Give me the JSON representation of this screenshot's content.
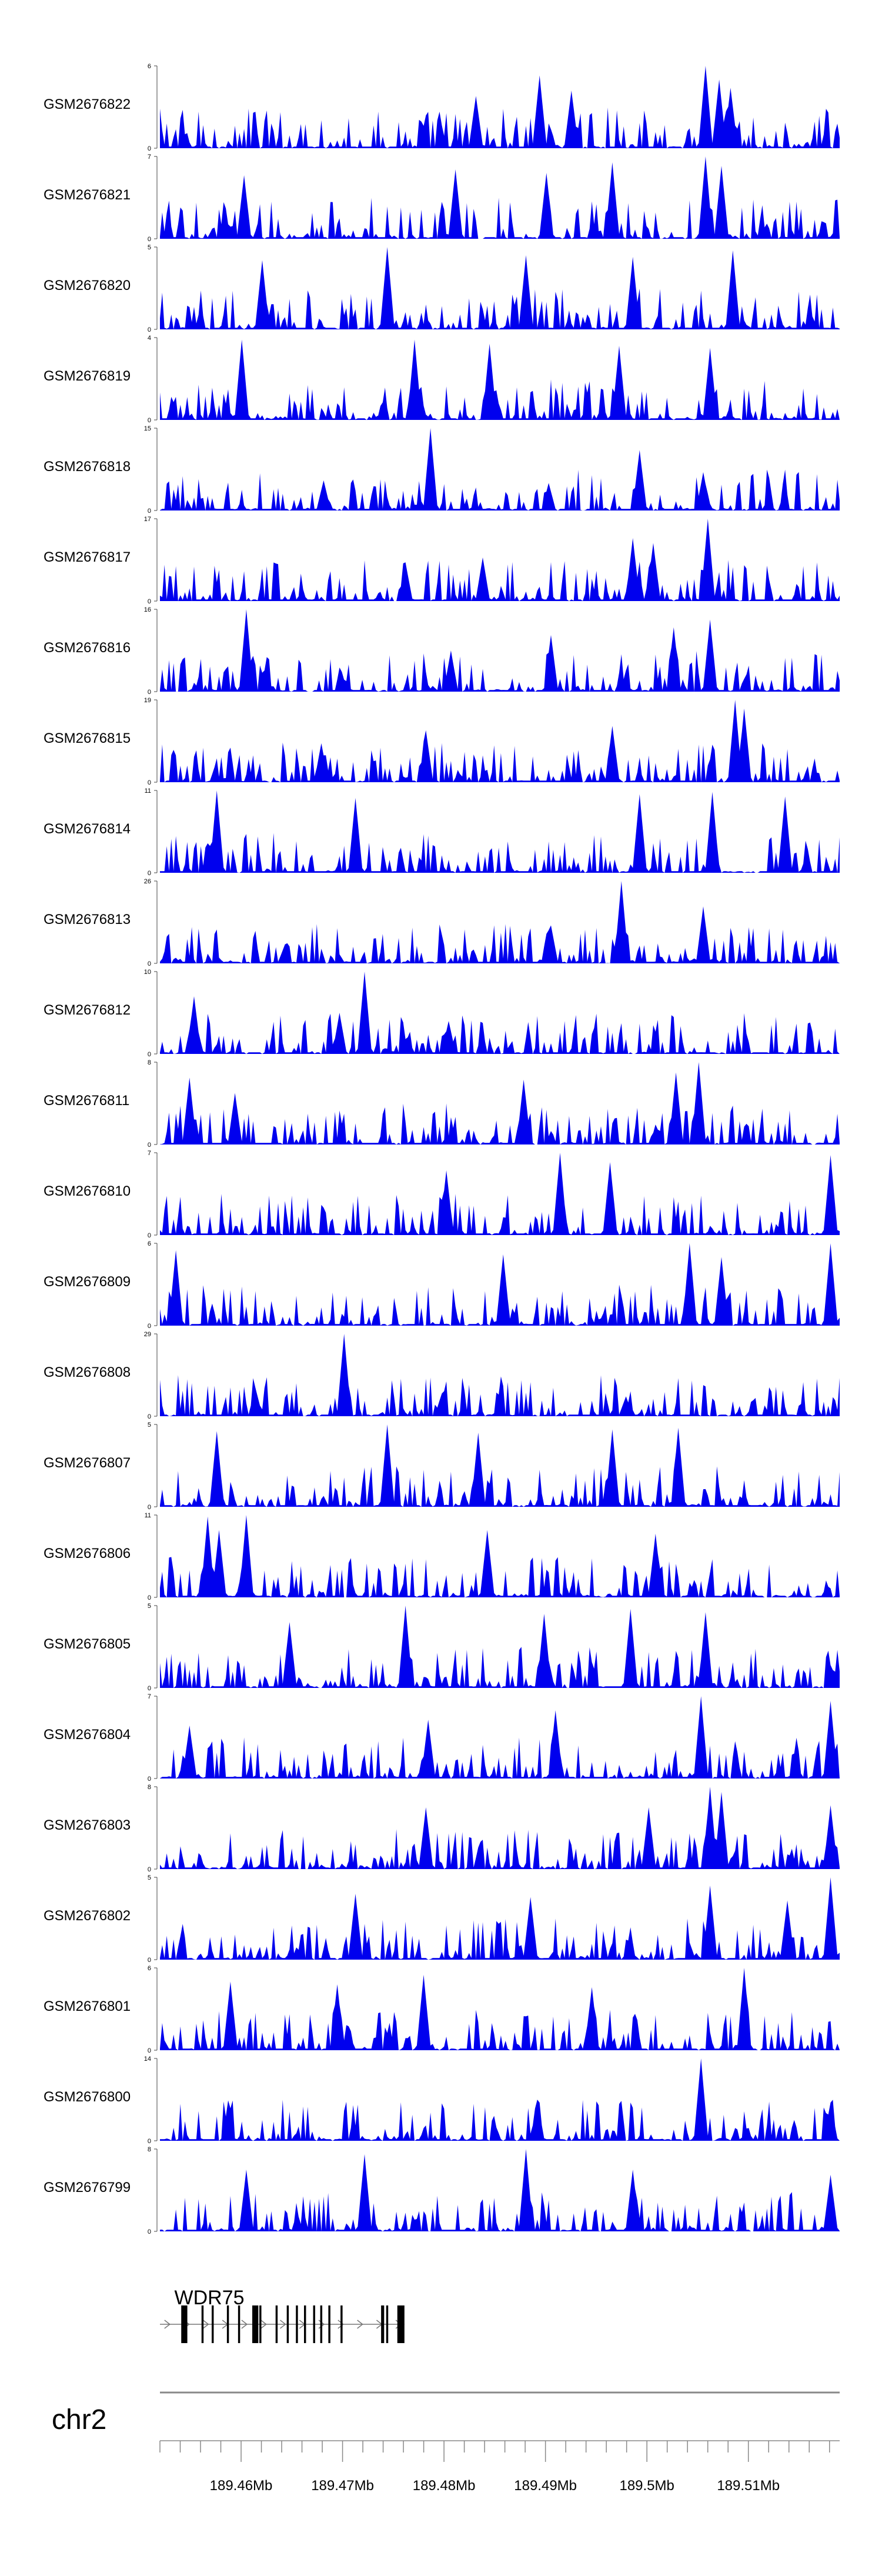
{
  "colors": {
    "signal": "#0000ee",
    "axis": "#444444",
    "gene": "#000000",
    "ruler": "#888888"
  },
  "chart_data": {
    "type": "area",
    "title": "",
    "xlabel": "",
    "ylabel": "",
    "chromosome": "chr2",
    "xlim": [
      189452000,
      189519000
    ],
    "xticks": [
      {
        "pos": 189460000,
        "label": "189.46Mb"
      },
      {
        "pos": 189470000,
        "label": "189.47Mb"
      },
      {
        "pos": 189480000,
        "label": "189.48Mb"
      },
      {
        "pos": 189490000,
        "label": "189.49Mb"
      },
      {
        "pos": 189500000,
        "label": "189.5Mb"
      },
      {
        "pos": 189510000,
        "label": "189.51Mb"
      }
    ],
    "tracks": [
      {
        "name": "GSM2676822",
        "ymax": 6,
        "ymin": 0,
        "peaks": [
          [
            189489500,
            5.3
          ],
          [
            189505800,
            6.0
          ],
          [
            189507200,
            5.0
          ],
          [
            189492600,
            4.2
          ],
          [
            189483100,
            3.8
          ],
          [
            189508300,
            4.4
          ]
        ]
      },
      {
        "name": "GSM2676821",
        "ymax": 7,
        "ymin": 0,
        "peaks": [
          [
            189505800,
            7.0
          ],
          [
            189496500,
            6.5
          ],
          [
            189507300,
            6.2
          ],
          [
            189481200,
            5.9
          ],
          [
            189490000,
            5.6
          ],
          [
            189460200,
            5.4
          ]
        ]
      },
      {
        "name": "GSM2676820",
        "ymax": 5,
        "ymin": 0,
        "peaks": [
          [
            189474300,
            5.0
          ],
          [
            189508500,
            4.8
          ],
          [
            189488000,
            4.5
          ],
          [
            189498500,
            4.4
          ],
          [
            189462100,
            4.2
          ]
        ]
      },
      {
        "name": "GSM2676819",
        "ymax": 4,
        "ymin": 0,
        "peaks": [
          [
            189460000,
            3.9
          ],
          [
            189477200,
            3.9
          ],
          [
            189484500,
            3.7
          ],
          [
            189497200,
            3.6
          ],
          [
            189506300,
            3.5
          ]
        ]
      },
      {
        "name": "GSM2676818",
        "ymax": 15,
        "ymin": 0,
        "peaks": [
          [
            189478600,
            15.0
          ],
          [
            189499300,
            11.0
          ],
          [
            189505500,
            7.0
          ],
          [
            189468200,
            5.5
          ],
          [
            189490300,
            5.0
          ]
        ]
      },
      {
        "name": "GSM2676817",
        "ymax": 17,
        "ymin": 0,
        "peaks": [
          [
            189506000,
            17.0
          ],
          [
            189498500,
            13.0
          ],
          [
            189500700,
            12.0
          ],
          [
            189483800,
            9.0
          ],
          [
            189476100,
            8.0
          ]
        ]
      },
      {
        "name": "GSM2676816",
        "ymax": 16,
        "ymin": 0,
        "peaks": [
          [
            189460500,
            16.0
          ],
          [
            189506200,
            14.0
          ],
          [
            189502700,
            12.5
          ],
          [
            189490600,
            11.0
          ],
          [
            189480700,
            8.0
          ]
        ]
      },
      {
        "name": "GSM2676815",
        "ymax": 19,
        "ymin": 0,
        "peaks": [
          [
            189508800,
            19.0
          ],
          [
            189509700,
            17.0
          ],
          [
            189496500,
            13.0
          ],
          [
            189478300,
            12.0
          ],
          [
            189467800,
            9.0
          ]
        ]
      },
      {
        "name": "GSM2676814",
        "ymax": 11,
        "ymin": 0,
        "peaks": [
          [
            189457600,
            11.0
          ],
          [
            189471200,
            10.0
          ],
          [
            189506400,
            10.8
          ],
          [
            189499300,
            10.5
          ],
          [
            189513600,
            10.2
          ]
        ]
      },
      {
        "name": "GSM2676813",
        "ymax": 26,
        "ymin": 0,
        "peaks": [
          [
            189497600,
            26.0
          ],
          [
            189505500,
            18.0
          ],
          [
            189497200,
            14.0
          ],
          [
            189490600,
            12.0
          ],
          [
            189464400,
            6.0
          ]
        ]
      },
      {
        "name": "GSM2676812",
        "ymax": 10,
        "ymin": 0,
        "peaks": [
          [
            189472200,
            10.0
          ],
          [
            189455300,
            7.0
          ],
          [
            189469600,
            5.0
          ],
          [
            189480500,
            4.0
          ]
        ]
      },
      {
        "name": "GSM2676811",
        "ymax": 8,
        "ymin": 0,
        "peaks": [
          [
            189505000,
            8.0
          ],
          [
            189502900,
            7.0
          ],
          [
            189455000,
            6.5
          ],
          [
            189487800,
            6.3
          ],
          [
            189459500,
            5.0
          ]
        ]
      },
      {
        "name": "GSM2676810",
        "ymax": 7,
        "ymin": 0,
        "peaks": [
          [
            189491400,
            7.0
          ],
          [
            189496300,
            6.2
          ],
          [
            189518000,
            6.8
          ],
          [
            189480200,
            5.5
          ]
        ]
      },
      {
        "name": "GSM2676809",
        "ymax": 6,
        "ymin": 0,
        "peaks": [
          [
            189504300,
            6.0
          ],
          [
            189518000,
            6.0
          ],
          [
            189507300,
            5.0
          ],
          [
            189485800,
            5.2
          ],
          [
            189453500,
            5.5
          ]
        ]
      },
      {
        "name": "GSM2676808",
        "ymax": 29,
        "ymin": 0,
        "peaks": [
          [
            189470100,
            29.0
          ],
          [
            189461500,
            10.0
          ],
          [
            189479700,
            8.0
          ],
          [
            189497900,
            7.0
          ]
        ]
      },
      {
        "name": "GSM2676807",
        "ymax": 5,
        "ymin": 0,
        "peaks": [
          [
            189474400,
            5.0
          ],
          [
            189503200,
            4.8
          ],
          [
            189457700,
            4.6
          ],
          [
            189483300,
            4.5
          ],
          [
            189496700,
            4.7
          ]
        ]
      },
      {
        "name": "GSM2676806",
        "ymax": 11,
        "ymin": 0,
        "peaks": [
          [
            189460500,
            11.0
          ],
          [
            189456700,
            10.8
          ],
          [
            189457800,
            9.0
          ],
          [
            189484200,
            9.0
          ],
          [
            189500900,
            8.5
          ]
        ]
      },
      {
        "name": "GSM2676805",
        "ymax": 5,
        "ymin": 0,
        "peaks": [
          [
            189476200,
            5.0
          ],
          [
            189498300,
            4.8
          ],
          [
            189505800,
            4.6
          ],
          [
            189489800,
            4.5
          ],
          [
            189464800,
            4.0
          ]
        ]
      },
      {
        "name": "GSM2676804",
        "ymax": 7,
        "ymin": 0,
        "peaks": [
          [
            189505300,
            7.0
          ],
          [
            189518000,
            6.6
          ],
          [
            189491000,
            5.8
          ],
          [
            189478400,
            5.0
          ],
          [
            189455000,
            4.5
          ]
        ]
      },
      {
        "name": "GSM2676803",
        "ymax": 8,
        "ymin": 0,
        "peaks": [
          [
            189506200,
            8.0
          ],
          [
            189507400,
            7.5
          ],
          [
            189478200,
            6.0
          ],
          [
            189500100,
            6.0
          ],
          [
            189518000,
            6.2
          ]
        ]
      },
      {
        "name": "GSM2676802",
        "ymax": 5,
        "ymin": 0,
        "peaks": [
          [
            189518000,
            5.0
          ],
          [
            189506300,
            4.5
          ],
          [
            189471200,
            4.0
          ],
          [
            189488500,
            3.8
          ],
          [
            189513900,
            3.6
          ]
        ]
      },
      {
        "name": "GSM2676801",
        "ymax": 6,
        "ymin": 0,
        "peaks": [
          [
            189509500,
            6.0
          ],
          [
            189478000,
            5.5
          ],
          [
            189458900,
            5.0
          ],
          [
            189469400,
            4.8
          ],
          [
            189494500,
            4.6
          ]
        ]
      },
      {
        "name": "GSM2676800",
        "ymax": 14,
        "ymin": 0,
        "peaks": [
          [
            189505400,
            14.0
          ],
          [
            189489300,
            7.0
          ],
          [
            189458800,
            6.0
          ],
          [
            189518000,
            6.5
          ]
        ]
      },
      {
        "name": "GSM2676799",
        "ymax": 8,
        "ymin": 0,
        "peaks": [
          [
            189488000,
            8.0
          ],
          [
            189472200,
            7.5
          ],
          [
            189460600,
            6.0
          ],
          [
            189498700,
            6.0
          ],
          [
            189518000,
            5.5
          ]
        ]
      }
    ],
    "gene": {
      "name": "WDR75",
      "start": 189454000,
      "end": 189476100,
      "exons": [
        [
          189454100,
          189454700
        ],
        [
          189456100,
          189456300
        ],
        [
          189457100,
          189457300
        ],
        [
          189458600,
          189458800
        ],
        [
          189459700,
          189459900
        ],
        [
          189461100,
          189461700
        ],
        [
          189461800,
          189462000
        ],
        [
          189463400,
          189463600
        ],
        [
          189464500,
          189464700
        ],
        [
          189465400,
          189465600
        ],
        [
          189466200,
          189466400
        ],
        [
          189467100,
          189467300
        ],
        [
          189467800,
          189468000
        ],
        [
          189468600,
          189468800
        ],
        [
          189469800,
          189470000
        ],
        [
          189473800,
          189474100
        ],
        [
          189474300,
          189474500
        ],
        [
          189475400,
          189476100
        ]
      ]
    }
  }
}
